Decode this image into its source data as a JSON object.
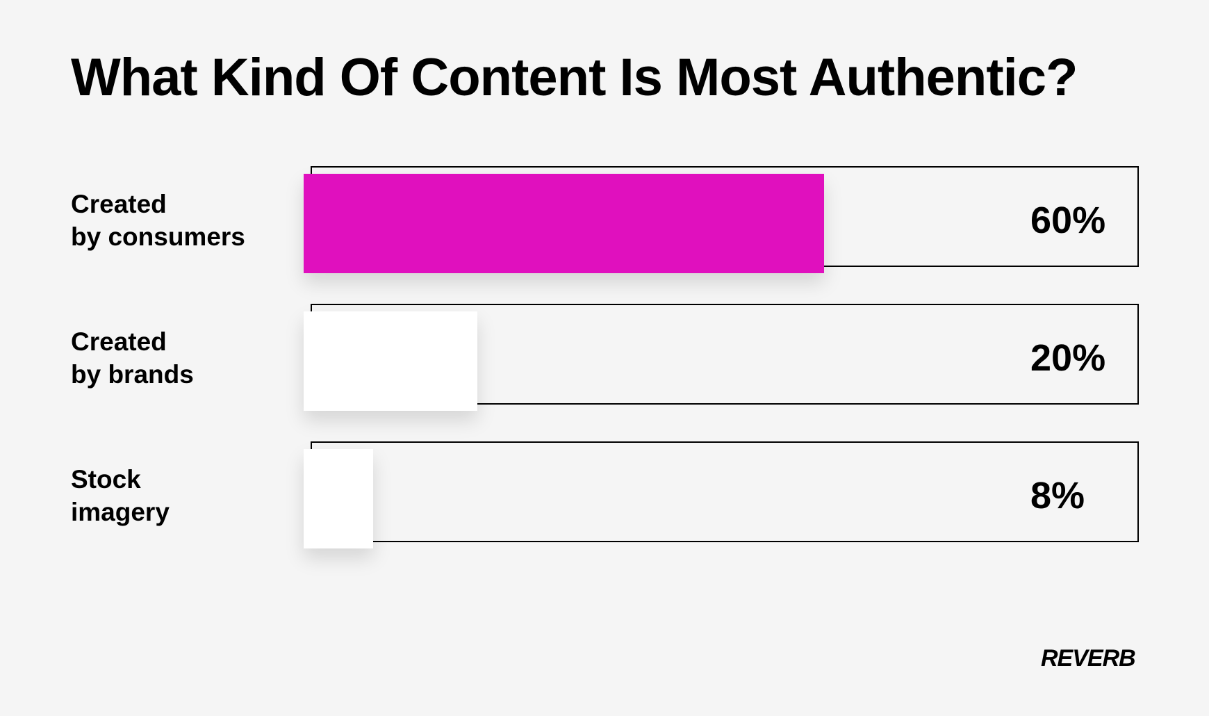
{
  "chart_data": {
    "type": "bar",
    "orientation": "horizontal",
    "title": "What Kind Of Content Is Most Authentic?",
    "categories": [
      "Created\nby consumers",
      "Created\nby brands",
      "Stock\nimagery"
    ],
    "values": [
      60,
      20,
      8
    ],
    "value_labels": [
      "60%",
      "20%",
      "8%"
    ],
    "colors": [
      "#e010be",
      "#ffffff",
      "#ffffff"
    ],
    "xlim": [
      0,
      100
    ],
    "logo": "REVERB"
  }
}
